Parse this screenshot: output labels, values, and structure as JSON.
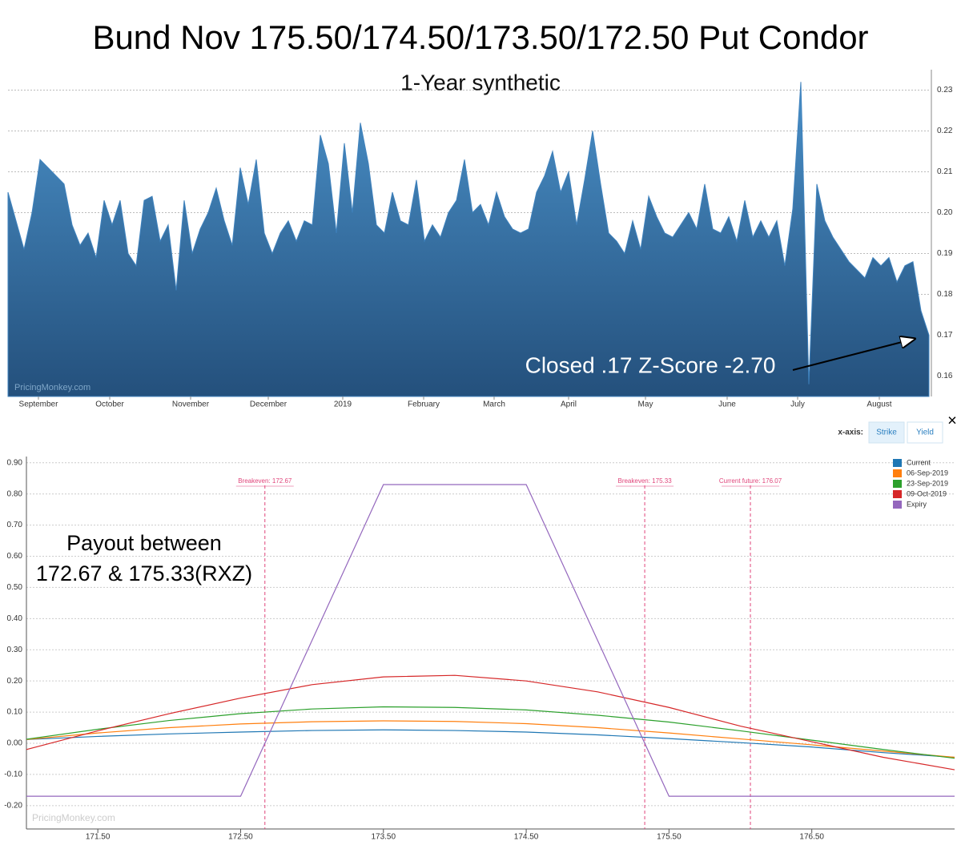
{
  "chart_data": [
    {
      "type": "area",
      "title": "Bund Nov 175.50/174.50/173.50/172.50 Put Condor",
      "subtitle": "1-Year synthetic",
      "annotation": "Closed .17 Z-Score -2.70",
      "watermark": "PricingMonkey.com",
      "color": "#3f82bd",
      "values": [
        0.205,
        0.198,
        0.191,
        0.2,
        0.213,
        0.211,
        0.209,
        0.207,
        0.197,
        0.192,
        0.195,
        0.189,
        0.203,
        0.197,
        0.203,
        0.19,
        0.187,
        0.203,
        0.204,
        0.193,
        0.197,
        0.181,
        0.203,
        0.19,
        0.196,
        0.2,
        0.206,
        0.198,
        0.192,
        0.211,
        0.202,
        0.213,
        0.195,
        0.19,
        0.195,
        0.198,
        0.193,
        0.198,
        0.197,
        0.219,
        0.212,
        0.195,
        0.217,
        0.2,
        0.222,
        0.212,
        0.197,
        0.195,
        0.205,
        0.198,
        0.197,
        0.208,
        0.193,
        0.197,
        0.194,
        0.2,
        0.203,
        0.213,
        0.2,
        0.202,
        0.197,
        0.205,
        0.199,
        0.196,
        0.195,
        0.196,
        0.205,
        0.209,
        0.215,
        0.205,
        0.21,
        0.197,
        0.208,
        0.22,
        0.207,
        0.195,
        0.193,
        0.19,
        0.198,
        0.191,
        0.204,
        0.199,
        0.195,
        0.194,
        0.197,
        0.2,
        0.196,
        0.207,
        0.196,
        0.195,
        0.199,
        0.193,
        0.203,
        0.194,
        0.198,
        0.194,
        0.198,
        0.187,
        0.201,
        0.232,
        0.158,
        0.207,
        0.198,
        0.194,
        0.191,
        0.188,
        0.186,
        0.184,
        0.189,
        0.187,
        0.189,
        0.183,
        0.187,
        0.188,
        0.176,
        0.17
      ],
      "xlim": [
        0,
        115
      ],
      "xticks": [
        {
          "value": 3.8,
          "label": "September"
        },
        {
          "value": 12.7,
          "label": "October"
        },
        {
          "value": 22.8,
          "label": "November"
        },
        {
          "value": 32.5,
          "label": "December"
        },
        {
          "value": 41.8,
          "label": "2019"
        },
        {
          "value": 51.9,
          "label": "February"
        },
        {
          "value": 60.7,
          "label": "March"
        },
        {
          "value": 70,
          "label": "April"
        },
        {
          "value": 79.6,
          "label": "May"
        },
        {
          "value": 89.8,
          "label": "June"
        },
        {
          "value": 98.6,
          "label": "July"
        },
        {
          "value": 108.8,
          "label": "August"
        }
      ],
      "ylim": [
        0.155,
        0.235
      ],
      "yticks": [
        0.16,
        0.17,
        0.18,
        0.19,
        {
          "value": 0.2,
          "label": "0.20"
        },
        0.21,
        0.22,
        0.23
      ],
      "grid": true
    },
    {
      "type": "line",
      "annotation": [
        "Payout between",
        "172.67 & 175.33(RXZ)"
      ],
      "watermark": "PricingMonkey.com",
      "controls": {
        "label": "x-axis:",
        "buttons": [
          "Strike",
          "Yield"
        ],
        "close": "×"
      },
      "legend": "top-right",
      "series": [
        {
          "name": "Current",
          "color": "#1f77b4",
          "x": [
            171,
            171.5,
            172,
            172.5,
            173,
            173.5,
            174,
            174.5,
            175,
            175.5,
            176,
            176.5,
            177,
            177.5
          ],
          "values": [
            0.012,
            0.022,
            0.03,
            0.036,
            0.041,
            0.043,
            0.041,
            0.036,
            0.027,
            0.015,
            0.002,
            -0.012,
            -0.03,
            -0.045
          ]
        },
        {
          "name": "06-Sep-2019",
          "color": "#ff7f0e",
          "x": [
            171,
            171.5,
            172,
            172.5,
            173,
            173.5,
            174,
            174.5,
            175,
            175.5,
            176,
            176.5,
            177,
            177.5
          ],
          "values": [
            0.012,
            0.033,
            0.05,
            0.062,
            0.069,
            0.072,
            0.07,
            0.063,
            0.05,
            0.033,
            0.014,
            -0.005,
            -0.025,
            -0.045
          ]
        },
        {
          "name": "23-Sep-2019",
          "color": "#2ca02c",
          "x": [
            171,
            171.5,
            172,
            172.5,
            173,
            173.5,
            174,
            174.5,
            175,
            175.5,
            176,
            176.5,
            177,
            177.5
          ],
          "values": [
            0.013,
            0.045,
            0.073,
            0.095,
            0.11,
            0.117,
            0.115,
            0.107,
            0.09,
            0.068,
            0.04,
            0.01,
            -0.02,
            -0.048
          ]
        },
        {
          "name": "09-Oct-2019",
          "color": "#d62728",
          "x": [
            171,
            171.5,
            172,
            172.5,
            173,
            173.5,
            174,
            174.5,
            175,
            175.5,
            176,
            176.5,
            177,
            177.5
          ],
          "values": [
            -0.02,
            0.04,
            0.095,
            0.145,
            0.188,
            0.213,
            0.218,
            0.2,
            0.165,
            0.115,
            0.055,
            0.005,
            -0.045,
            -0.085
          ]
        },
        {
          "name": "Expiry",
          "color": "#9467bd",
          "x": [
            171,
            172.5,
            173.5,
            174.5,
            175.5,
            177.5
          ],
          "values": [
            -0.17,
            -0.17,
            0.83,
            0.83,
            -0.17,
            -0.17
          ]
        }
      ],
      "markers": [
        {
          "value": 172.67,
          "label": "Breakeven: 172.67"
        },
        {
          "value": 175.33,
          "label": "Breakeven: 175.33"
        },
        {
          "value": 176.07,
          "label": "Current future: 176.07"
        }
      ],
      "marker_color": "#e0457b",
      "xlim": [
        171.0,
        177.5
      ],
      "xticks": [
        {
          "value": 171.5,
          "label": "171.50"
        },
        {
          "value": 172.5,
          "label": "172.50"
        },
        {
          "value": 173.5,
          "label": "173.50"
        },
        {
          "value": 174.5,
          "label": "174.50"
        },
        {
          "value": 175.5,
          "label": "175.50"
        },
        {
          "value": 176.5,
          "label": "176.50"
        }
      ],
      "ylim": [
        -0.275,
        0.92
      ],
      "yticks": [
        {
          "value": -0.2,
          "label": "-0.20"
        },
        {
          "value": -0.1,
          "label": "-0.10"
        },
        {
          "value": 0,
          "label": "0.00"
        },
        {
          "value": 0.1,
          "label": "0.10"
        },
        {
          "value": 0.2,
          "label": "0.20"
        },
        {
          "value": 0.3,
          "label": "0.30"
        },
        {
          "value": 0.4,
          "label": "0.40"
        },
        {
          "value": 0.5,
          "label": "0.50"
        },
        {
          "value": 0.6,
          "label": "0.60"
        },
        {
          "value": 0.7,
          "label": "0.70"
        },
        {
          "value": 0.8,
          "label": "0.80"
        },
        {
          "value": 0.9,
          "label": "0.90"
        }
      ],
      "grid": true
    }
  ]
}
